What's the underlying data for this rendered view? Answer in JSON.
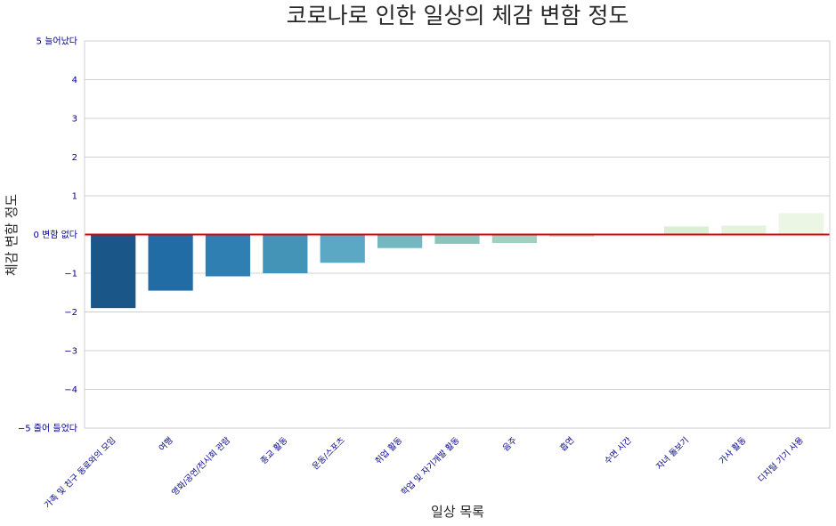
{
  "chart_data": {
    "type": "bar",
    "title": "코로나로 인한 일상의 체감 변함 정도",
    "xlabel": "일상 목록",
    "ylabel": "체감 변함 정도",
    "ylim": [
      -5,
      5
    ],
    "yticks": [
      -5,
      -4,
      -3,
      -2,
      -1,
      0,
      1,
      2,
      3,
      4,
      5
    ],
    "ytick_labels": [
      "−5 줄어 들었다",
      "−4",
      "−3",
      "−2",
      "−1",
      "0 변함 없다",
      "1",
      "2",
      "3",
      "4",
      "5 늘어났다"
    ],
    "grid": true,
    "reference_line": {
      "y": 0,
      "color": "#e00000"
    },
    "categories": [
      "가족 및 친구 동료와의 모임",
      "여행",
      "영화/공연/전시회 관람",
      "종교 활동",
      "운동/스포츠",
      "취업 활동",
      "학업 및 자기개발 활동",
      "음주",
      "흡연",
      "수면 시간",
      "자녀 돌보기",
      "가사 활동",
      "디지털 기기 사용"
    ],
    "values": [
      -1.9,
      -1.45,
      -1.08,
      -1.0,
      -0.73,
      -0.35,
      -0.24,
      -0.22,
      -0.06,
      0.0,
      0.21,
      0.23,
      0.55
    ],
    "colors": [
      "#1a5688",
      "#216ca5",
      "#307fb3",
      "#4494b8",
      "#5aa8c4",
      "#72b8c0",
      "#87c6bc",
      "#9fd1c0",
      "#c3e4cb",
      "#cee9d2",
      "#dbefd8",
      "#e3f3de",
      "#ebf6e4"
    ]
  }
}
